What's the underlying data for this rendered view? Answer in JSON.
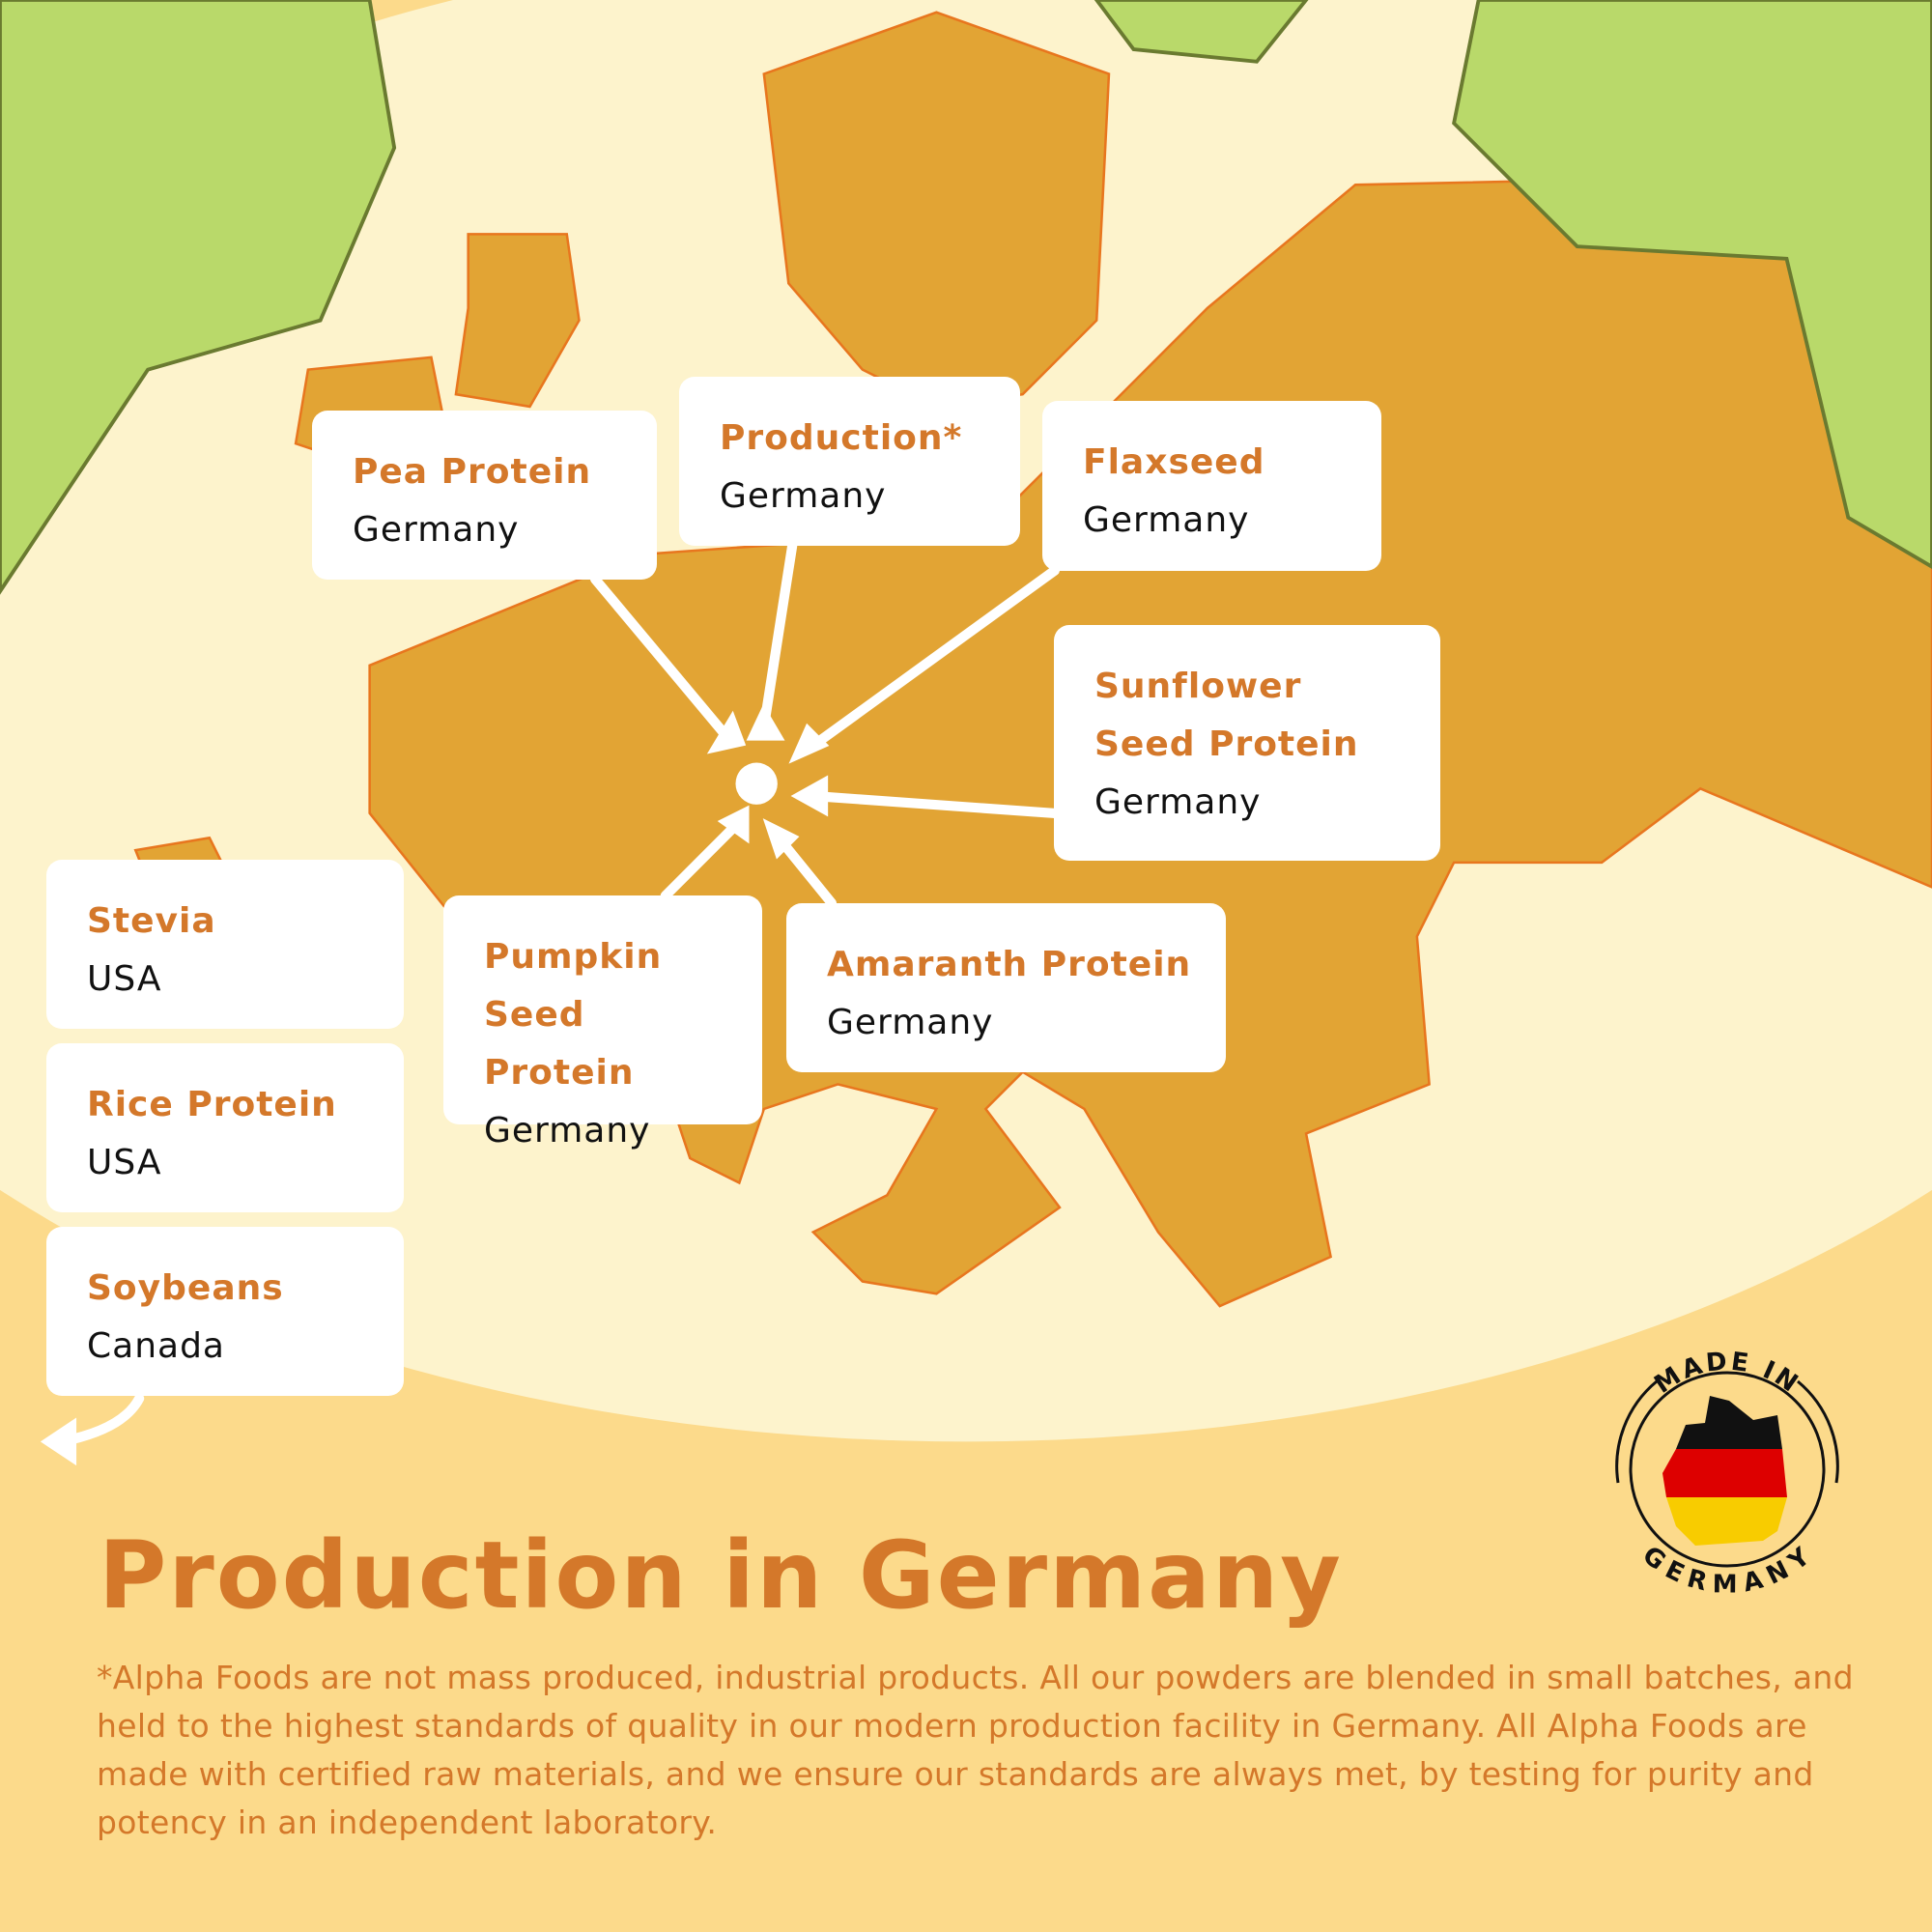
{
  "cards": [
    {
      "label": "Pea Protein",
      "country": "Germany"
    },
    {
      "label": "Production*",
      "country": "Germany"
    },
    {
      "label": "Flaxseed",
      "country": "Germany"
    },
    {
      "label": "Sunflower Seed Protein",
      "country": "Germany"
    },
    {
      "label": "Pumpkin Seed Protein",
      "country": "Germany"
    },
    {
      "label": "Amaranth Protein",
      "country": "Germany"
    },
    {
      "label": "Stevia",
      "country": "USA"
    },
    {
      "label": "Rice Protein",
      "country": "USA"
    },
    {
      "label": "Soybeans",
      "country": "Canada"
    }
  ],
  "title": "Production in Germany",
  "description": "*Alpha Foods are not mass produced, industrial products. All our powders are blended in small batches, and held to the highest standards of quality in our modern production facility in Germany. All Alpha Foods are made with certified raw materials, and we ensure our standards are always met, by testing for purity and potency in an independent laboratory.",
  "badge": {
    "top_text": "MADE IN",
    "bottom_text": "GERMANY",
    "flag_colors": [
      "#111111",
      "#dd0000",
      "#f8cc00"
    ]
  },
  "colors": {
    "accent": "#d4782a",
    "map": "#e3a535",
    "cream": "#fdf3cc",
    "background": "#fcda8b",
    "leaf": "#b9d96a"
  }
}
